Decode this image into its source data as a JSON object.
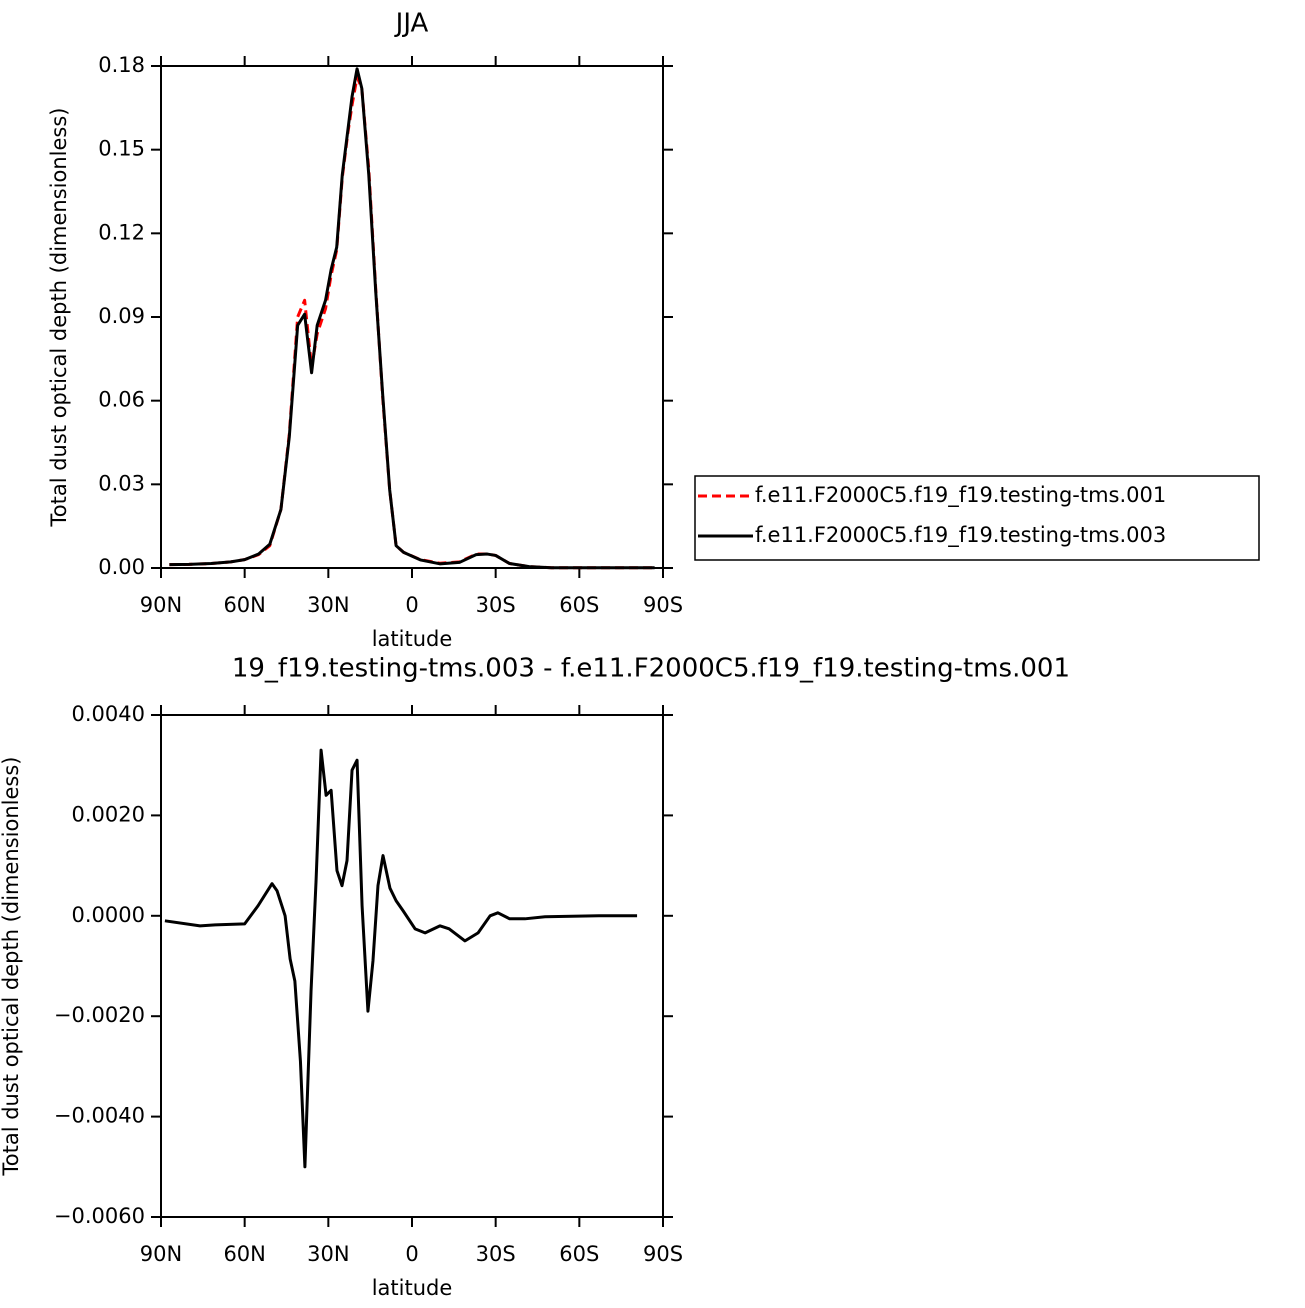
{
  "chart_data": [
    {
      "type": "line",
      "title": "JJA",
      "x_label": "latitude",
      "y_label": "Total dust optical depth (dimensionless)",
      "x": [
        87,
        80,
        72,
        65,
        60,
        55,
        51,
        47,
        44,
        41,
        38.5,
        36,
        34,
        31,
        29,
        27,
        25,
        23,
        21.5,
        19.7,
        18,
        15.5,
        13,
        10.5,
        8,
        5.7,
        3,
        -3,
        -10,
        -17,
        -23,
        -27,
        -30,
        -35,
        -42,
        -50,
        -60,
        -70,
        -80,
        -87
      ],
      "series": [
        {
          "name": "f.e11.F2000C5.f19_f19.testing-tms.001",
          "color": "#ff0000",
          "line_style": "dashed",
          "values": [
            0.0012,
            0.0013,
            0.0016,
            0.0022,
            0.003,
            0.0048,
            0.008,
            0.021,
            0.048,
            0.09,
            0.096,
            0.072,
            0.084,
            0.093,
            0.105,
            0.114,
            0.14,
            0.156,
            0.166,
            0.176,
            0.172,
            0.143,
            0.1,
            0.061,
            0.028,
            0.008,
            0.0056,
            0.003,
            0.0017,
            0.0022,
            0.005,
            0.005,
            0.0045,
            0.0016,
            0.0005,
            0.0001,
            0.0001,
            0.0001,
            0.0001,
            0.0001
          ]
        },
        {
          "name": "f.e11.F2000C5.f19_f19.testing-tms.003",
          "color": "#000000",
          "line_style": "solid",
          "values": [
            0.0012,
            0.0013,
            0.0016,
            0.0022,
            0.003,
            0.005,
            0.0085,
            0.021,
            0.047,
            0.087,
            0.091,
            0.07,
            0.087,
            0.096,
            0.107,
            0.115,
            0.141,
            0.157,
            0.169,
            0.179,
            0.172,
            0.141,
            0.099,
            0.062,
            0.028,
            0.008,
            0.0056,
            0.0029,
            0.0015,
            0.002,
            0.0048,
            0.005,
            0.0045,
            0.0016,
            0.0005,
            0.0001,
            0.0001,
            0.0001,
            0.0001,
            0.0001
          ]
        }
      ],
      "xlim": [
        90,
        -90
      ],
      "xticks": [
        {
          "value": 90,
          "label": "90N"
        },
        {
          "value": 60,
          "label": "60N"
        },
        {
          "value": 30,
          "label": "30N"
        },
        0,
        {
          "value": -30,
          "label": "30S"
        },
        {
          "value": -60,
          "label": "60S"
        },
        {
          "value": -90,
          "label": "90S"
        }
      ],
      "ylim": [
        0,
        0.18
      ],
      "yticks": [
        {
          "value": 0,
          "label": "0.00"
        },
        0.03,
        0.06,
        0.09,
        0.12,
        0.15,
        0.18
      ],
      "legend": "right"
    },
    {
      "type": "line",
      "title": "19_f19.testing-tms.003 - f.e11.F2000C5.f19_f19.testing-tms.001",
      "x_label": "latitude",
      "y_label": "Total dust optical depth (dimensionless)",
      "x": [
        88.6,
        76,
        70.6,
        60,
        55.2,
        50.2,
        48.4,
        45.5,
        43.7,
        42,
        40,
        38.4,
        36.2,
        34.4,
        32.6,
        30.8,
        29,
        26.9,
        25.1,
        23.3,
        21.5,
        19.7,
        17.9,
        15.8,
        14,
        12.2,
        10.4,
        7.9,
        5.7,
        3.2,
        -1.1,
        -4.7,
        -10,
        -13.3,
        -19,
        -23.7,
        -28,
        -30.8,
        -35,
        -40.5,
        -47.7,
        -67,
        -80.7
      ],
      "series": [
        {
          "color": "#000000",
          "line_style": "solid",
          "values": [
            -0.0001,
            -0.0002,
            -0.00018,
            -0.00016,
            0.0002,
            0.00064,
            0.0005,
            0.0,
            -0.00086,
            -0.0013,
            -0.0029,
            -0.005,
            -0.0015,
            0.0007,
            0.0033,
            0.0024,
            0.0025,
            0.0009,
            0.0006,
            0.0011,
            0.0029,
            0.0031,
            0.0002,
            -0.0019,
            -0.0009,
            0.0006,
            0.0012,
            0.00055,
            0.0003,
            0.0001,
            -0.00026,
            -0.00034,
            -0.0002,
            -0.00026,
            -0.0005,
            -0.00034,
            0.0,
            6e-05,
            -6e-05,
            -6e-05,
            -2e-05,
            0.0,
            0.0
          ]
        }
      ],
      "xlim": [
        90,
        -90
      ],
      "xticks": [
        {
          "value": 90,
          "label": "90N"
        },
        {
          "value": 60,
          "label": "60N"
        },
        {
          "value": 30,
          "label": "30N"
        },
        0,
        {
          "value": -30,
          "label": "30S"
        },
        {
          "value": -60,
          "label": "60S"
        },
        {
          "value": -90,
          "label": "90S"
        }
      ],
      "ylim": [
        -0.006,
        0.004
      ],
      "yticks": [
        {
          "value": -0.006,
          "label": "−0.0060"
        },
        {
          "value": -0.004,
          "label": "−0.0040"
        },
        {
          "value": -0.002,
          "label": "−0.0020"
        },
        {
          "value": 0,
          "label": "0.0000"
        },
        {
          "value": 0.002,
          "label": "0.0020"
        },
        {
          "value": 0.004,
          "label": "0.0040"
        }
      ]
    }
  ]
}
